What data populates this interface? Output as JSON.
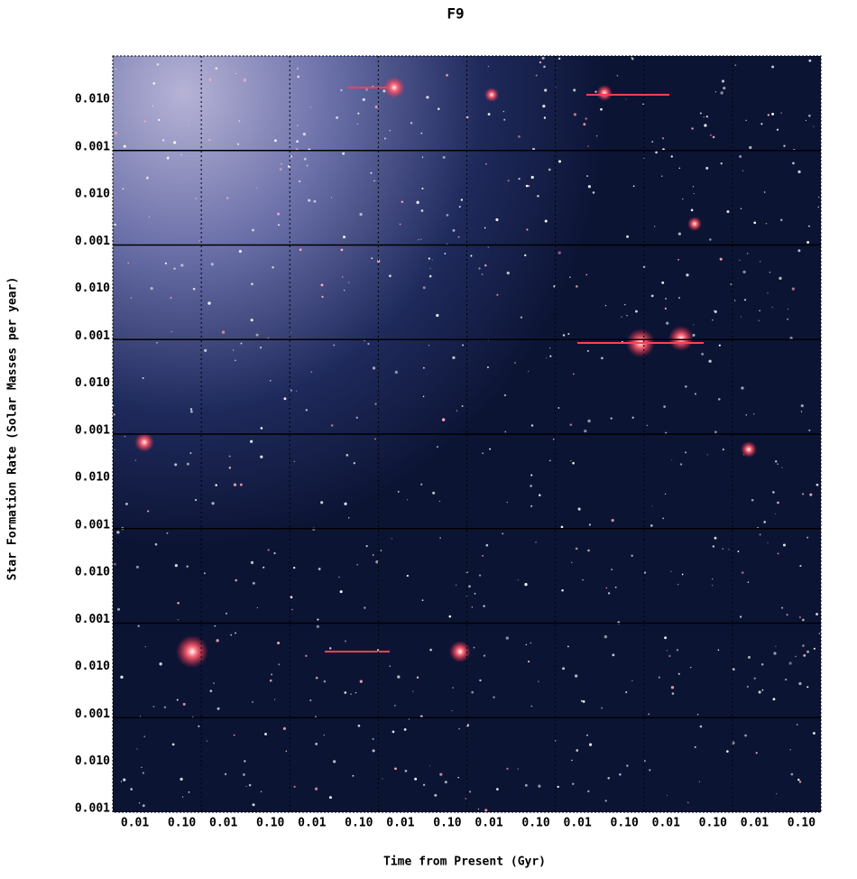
{
  "title": "F9",
  "y_axis_label": "Star Formation Rate (Solar Masses per year)",
  "x_axis_label": "Time from Present (Gyr)",
  "rows": [
    {
      "upper": "0.010",
      "lower": "0.001"
    },
    {
      "upper": "0.010",
      "lower": "0.001"
    },
    {
      "upper": "0.010",
      "lower": "0.001"
    },
    {
      "upper": "0.010",
      "lower": "0.001"
    },
    {
      "upper": "0.010",
      "lower": "0.001"
    },
    {
      "upper": "0.010",
      "lower": "0.001"
    },
    {
      "upper": "0.010",
      "lower": "0.001"
    },
    {
      "upper": "0.010",
      "lower": "0.001"
    }
  ],
  "columns": [
    {
      "left": "0.01",
      "right": "0.10"
    },
    {
      "left": "0.01",
      "right": "0.10"
    },
    {
      "left": "0.01",
      "right": "0.10"
    },
    {
      "left": "0.01",
      "right": "0.10"
    },
    {
      "left": "0.01",
      "right": "0.10"
    },
    {
      "left": "0.01",
      "right": "0.10"
    },
    {
      "left": "0.01",
      "right": "0.10"
    },
    {
      "left": "0.01",
      "right": "0.10"
    }
  ]
}
